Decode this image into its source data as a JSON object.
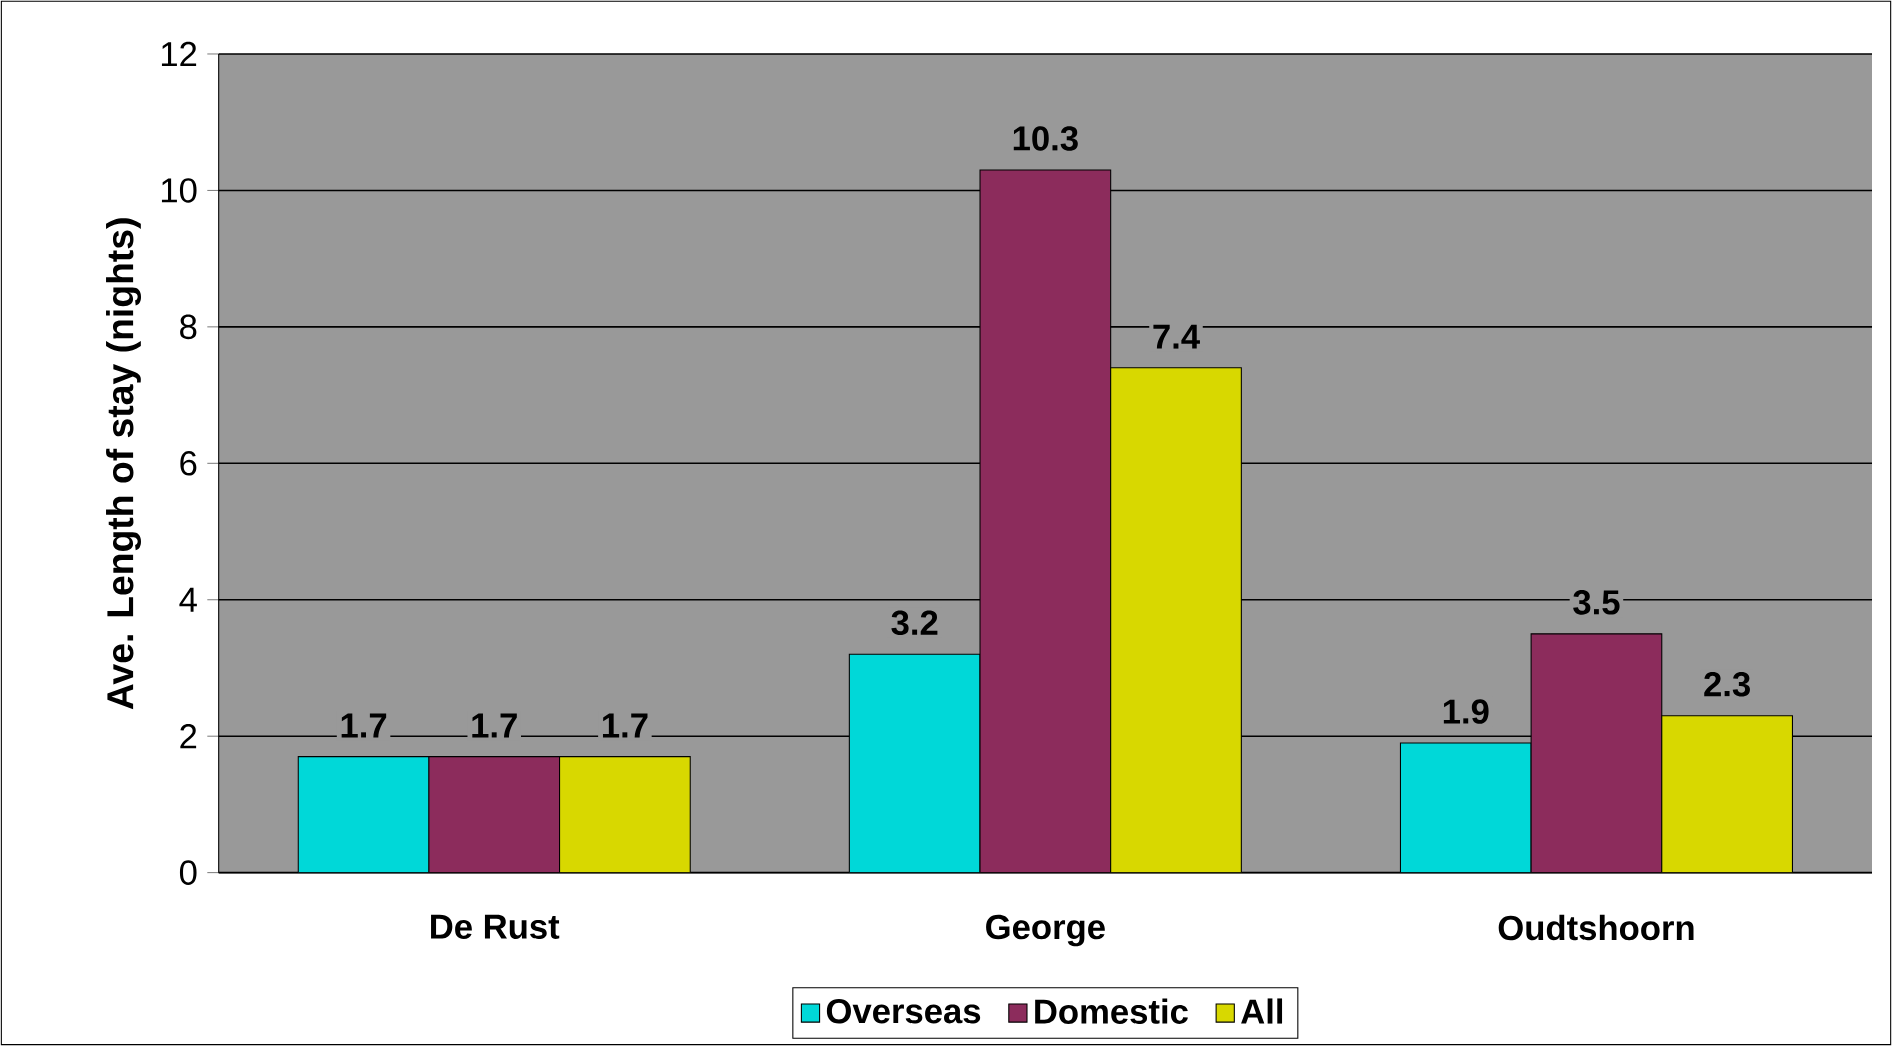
{
  "chart_data": {
    "type": "bar",
    "ylabel": "Ave. Length of stay (nights)",
    "categories": [
      "De Rust",
      "George",
      "Oudtshoorn"
    ],
    "series": [
      {
        "name": "Overseas",
        "color": "#00d8d8",
        "values": [
          1.7,
          3.2,
          1.9
        ]
      },
      {
        "name": "Domestic",
        "color": "#8c2c5c",
        "values": [
          1.7,
          10.3,
          3.5
        ]
      },
      {
        "name": "All",
        "color": "#d8d800",
        "values": [
          1.7,
          7.4,
          2.3
        ]
      }
    ],
    "ylim": [
      0,
      12
    ],
    "yticks": [
      0,
      2,
      4,
      6,
      8,
      10,
      12
    ],
    "grid": "y",
    "legend": "bottom",
    "data_labels": true
  }
}
